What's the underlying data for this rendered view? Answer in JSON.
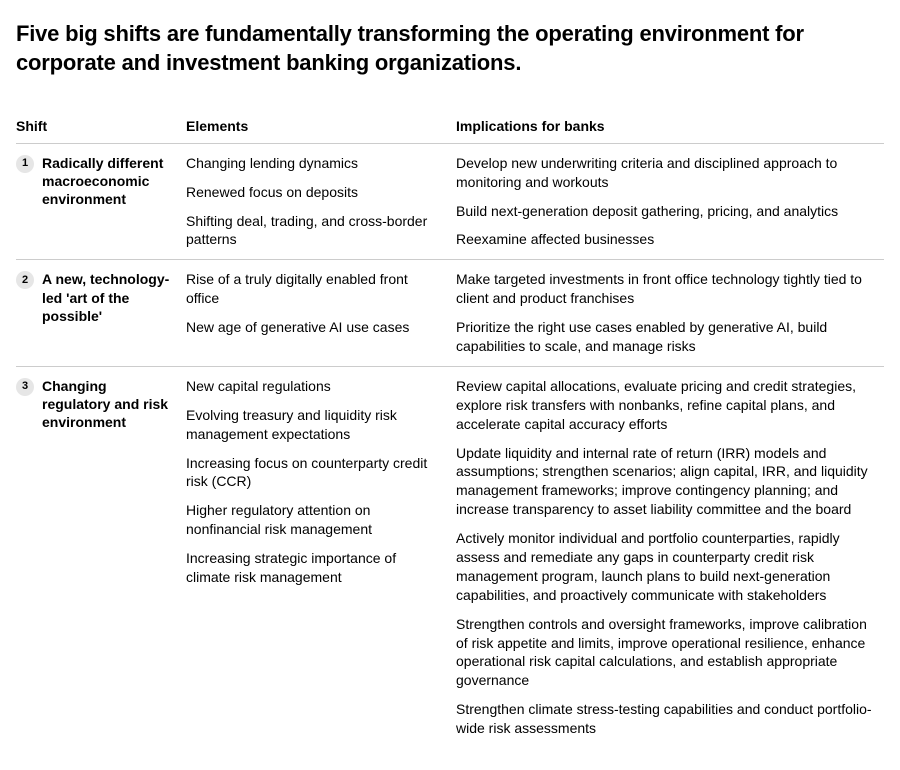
{
  "title": "Five big shifts are fundamentally transforming the operating environment for corporate and investment banking organizations.",
  "headers": {
    "shift": "Shift",
    "elements": "Elements",
    "implications": "Implications for banks"
  },
  "rows": [
    {
      "num": "1",
      "label": "Radically different macroeconomic environment",
      "elements": [
        "Changing lending dynamics",
        "Renewed focus on deposits",
        "Shifting deal, trading, and cross-border patterns"
      ],
      "implications": [
        "Develop new underwriting criteria and disciplined approach to monitoring and workouts",
        "Build next-generation deposit gathering, pricing, and analytics",
        "Reexamine affected businesses"
      ]
    },
    {
      "num": "2",
      "label": "A new, technology-led 'art of the possible'",
      "elements": [
        "Rise of a truly digitally enabled front office",
        "New age of generative AI use cases"
      ],
      "implications": [
        "Make targeted investments in front office technology tightly tied to client and product franchises",
        "Prioritize the right use cases enabled by generative AI, build capabilities to scale, and manage risks"
      ]
    },
    {
      "num": "3",
      "label": "Changing regulatory and risk environment",
      "elements": [
        "New capital regulations",
        "Evolving treasury and liquidity risk management expectations",
        "Increasing focus on counterparty credit risk (CCR)",
        "Higher regulatory attention on nonfinancial risk management",
        "Increasing strategic importance of climate risk management"
      ],
      "implications": [
        "Review capital allocations, evaluate pricing and credit strategies, explore risk transfers with nonbanks, refine capital plans, and accelerate capital accuracy efforts",
        "Update liquidity and internal rate of return (IRR) models and assumptions; strengthen scenarios; align capital, IRR, and liquidity management frameworks; improve contingency planning; and increase transparency to asset liability committee and the board",
        "Actively monitor individual and portfolio counterparties, rapidly assess and remediate any gaps in counterparty credit risk management program, launch plans to build next-generation capabilities, and proactively communicate with stakeholders",
        "Strengthen controls and oversight frameworks, improve calibration of risk appetite and limits, improve operational resilience, enhance operational risk capital calculations, and establish appropriate governance",
        "Strengthen climate stress-testing capabilities and conduct portfolio-wide risk assessments"
      ]
    }
  ]
}
